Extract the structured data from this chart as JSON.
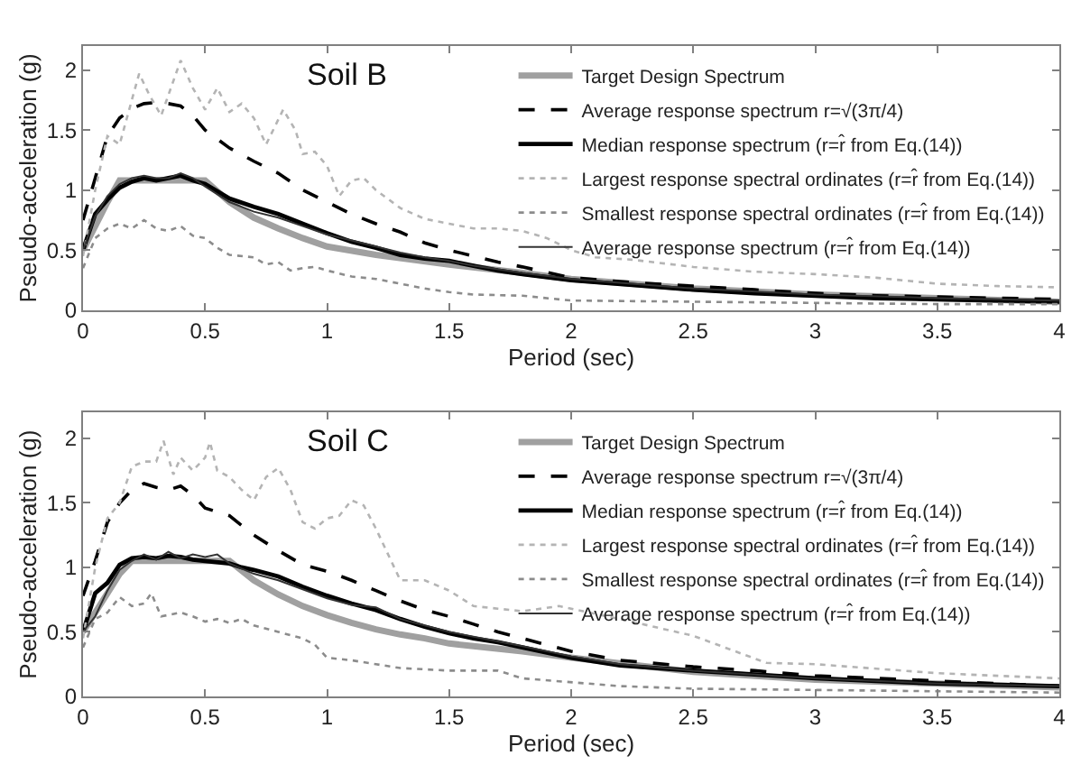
{
  "chart_data": [
    {
      "type": "line",
      "xlabel": "Period (sec)",
      "ylabel": "Pseudo-acceleration (g)",
      "annotations": [
        "Soil B"
      ],
      "xlim": [
        0,
        4
      ],
      "xticks": [
        0,
        0.5,
        1,
        1.5,
        2,
        2.5,
        3,
        3.5,
        4
      ],
      "ylim": [
        0,
        2.2
      ],
      "yticks": [
        0,
        0.5,
        1,
        1.5,
        2
      ],
      "grid": false,
      "legend": "top right",
      "marker": "none",
      "series": [
        {
          "name": "Target Design Spectrum",
          "color": "#a0a0a0",
          "line_style": "solid",
          "x": [
            0,
            0.05,
            0.1,
            0.15,
            0.2,
            0.3,
            0.4,
            0.5,
            0.6,
            0.7,
            0.8,
            0.9,
            1.0,
            1.2,
            1.5,
            1.8,
            2.0,
            2.5,
            3.0,
            3.5,
            4.0
          ],
          "values": [
            0.5,
            0.7,
            0.9,
            1.08,
            1.08,
            1.08,
            1.08,
            1.08,
            0.9,
            0.77,
            0.68,
            0.6,
            0.53,
            0.46,
            0.38,
            0.31,
            0.26,
            0.18,
            0.13,
            0.1,
            0.07
          ]
        },
        {
          "name": "Average response spectrum r=√(3π/4)",
          "color": "#000000",
          "line_style": "dashed",
          "x": [
            0,
            0.05,
            0.1,
            0.15,
            0.2,
            0.25,
            0.3,
            0.35,
            0.4,
            0.45,
            0.5,
            0.6,
            0.7,
            0.8,
            0.9,
            1.0,
            1.1,
            1.2,
            1.3,
            1.4,
            1.5,
            1.6,
            1.7,
            1.8,
            2.0,
            2.25,
            2.5,
            2.75,
            3.0,
            3.25,
            3.5,
            3.75,
            4.0
          ],
          "values": [
            0.75,
            1.1,
            1.45,
            1.6,
            1.68,
            1.72,
            1.73,
            1.72,
            1.7,
            1.62,
            1.5,
            1.35,
            1.24,
            1.14,
            1.0,
            0.9,
            0.8,
            0.72,
            0.65,
            0.56,
            0.5,
            0.45,
            0.4,
            0.36,
            0.27,
            0.23,
            0.2,
            0.17,
            0.14,
            0.12,
            0.11,
            0.1,
            0.09
          ]
        },
        {
          "name": "Median response spectrum (r=r̂ from Eq.(14))",
          "color": "#000000",
          "line_style": "solid",
          "x": [
            0,
            0.05,
            0.1,
            0.15,
            0.2,
            0.25,
            0.3,
            0.35,
            0.4,
            0.45,
            0.5,
            0.6,
            0.7,
            0.8,
            0.9,
            1.0,
            1.1,
            1.2,
            1.3,
            1.4,
            1.5,
            1.6,
            1.7,
            1.8,
            2.0,
            2.25,
            2.5,
            2.75,
            3.0,
            3.25,
            3.5,
            3.75,
            4.0
          ],
          "values": [
            0.5,
            0.8,
            0.92,
            1.02,
            1.07,
            1.1,
            1.08,
            1.1,
            1.12,
            1.08,
            1.05,
            0.93,
            0.86,
            0.8,
            0.72,
            0.64,
            0.57,
            0.52,
            0.46,
            0.43,
            0.41,
            0.37,
            0.33,
            0.3,
            0.25,
            0.21,
            0.17,
            0.14,
            0.12,
            0.1,
            0.09,
            0.08,
            0.07
          ]
        },
        {
          "name": "Largest response spectral ordinates (r=r̂ from Eq.(14))",
          "color": "#b4b4b4",
          "line_style": "dotted",
          "x": [
            0,
            0.05,
            0.1,
            0.15,
            0.2,
            0.23,
            0.27,
            0.32,
            0.36,
            0.4,
            0.45,
            0.5,
            0.55,
            0.6,
            0.65,
            0.7,
            0.75,
            0.82,
            0.87,
            0.9,
            0.95,
            1.0,
            1.05,
            1.1,
            1.15,
            1.2,
            1.3,
            1.4,
            1.5,
            1.6,
            1.7,
            1.8,
            1.9,
            2.0,
            2.1,
            2.25,
            2.5,
            2.75,
            3.0,
            3.25,
            3.5,
            3.75,
            4.0
          ],
          "values": [
            0.45,
            1.0,
            1.45,
            1.38,
            1.75,
            1.97,
            1.8,
            1.62,
            1.85,
            2.08,
            1.85,
            1.67,
            1.85,
            1.65,
            1.72,
            1.6,
            1.38,
            1.67,
            1.5,
            1.3,
            1.32,
            1.2,
            0.95,
            1.08,
            1.1,
            1.0,
            0.85,
            0.76,
            0.72,
            0.68,
            0.68,
            0.66,
            0.6,
            0.5,
            0.44,
            0.42,
            0.36,
            0.32,
            0.3,
            0.27,
            0.22,
            0.2,
            0.19
          ]
        },
        {
          "name": "Smallest response spectral ordinates (r=r̂ from Eq.(14))",
          "color": "#8c8c8c",
          "line_style": "dotted",
          "x": [
            0,
            0.05,
            0.1,
            0.15,
            0.2,
            0.25,
            0.3,
            0.35,
            0.4,
            0.45,
            0.5,
            0.55,
            0.6,
            0.7,
            0.75,
            0.8,
            0.85,
            0.9,
            0.95,
            1.0,
            1.1,
            1.2,
            1.3,
            1.4,
            1.5,
            1.6,
            1.8,
            2.0,
            2.5,
            3.0,
            3.5,
            4.0
          ],
          "values": [
            0.35,
            0.6,
            0.68,
            0.72,
            0.68,
            0.75,
            0.68,
            0.66,
            0.7,
            0.62,
            0.6,
            0.52,
            0.46,
            0.44,
            0.38,
            0.4,
            0.33,
            0.35,
            0.36,
            0.33,
            0.28,
            0.26,
            0.22,
            0.18,
            0.15,
            0.13,
            0.12,
            0.08,
            0.07,
            0.06,
            0.05,
            0.05
          ]
        },
        {
          "name": "Average response spectrum (r=r̂ from Eq.(14))",
          "color": "#333333",
          "line_style": "solid",
          "x": [
            0,
            0.05,
            0.1,
            0.15,
            0.2,
            0.25,
            0.3,
            0.35,
            0.4,
            0.45,
            0.5,
            0.6,
            0.7,
            0.8,
            0.9,
            1.0,
            1.1,
            1.2,
            1.3,
            1.4,
            1.5,
            1.6,
            1.7,
            1.8,
            2.0,
            2.5,
            3.0,
            3.5,
            4.0
          ],
          "values": [
            0.5,
            0.78,
            0.95,
            1.05,
            1.1,
            1.12,
            1.1,
            1.1,
            1.14,
            1.1,
            1.03,
            0.9,
            0.82,
            0.77,
            0.7,
            0.63,
            0.58,
            0.53,
            0.48,
            0.44,
            0.41,
            0.37,
            0.34,
            0.31,
            0.26,
            0.18,
            0.13,
            0.1,
            0.08
          ]
        }
      ]
    },
    {
      "type": "line",
      "xlabel": "Period (sec)",
      "ylabel": "Pseudo-acceleration (g)",
      "annotations": [
        "Soil C"
      ],
      "xlim": [
        0,
        4
      ],
      "xticks": [
        0,
        0.5,
        1,
        1.5,
        2,
        2.5,
        3,
        3.5,
        4
      ],
      "ylim": [
        0,
        2.2
      ],
      "yticks": [
        0,
        0.5,
        1,
        1.5,
        2
      ],
      "grid": false,
      "legend": "top right",
      "marker": "none",
      "series": [
        {
          "name": "Target Design Spectrum",
          "color": "#a0a0a0",
          "line_style": "solid",
          "x": [
            0,
            0.05,
            0.1,
            0.15,
            0.2,
            0.3,
            0.4,
            0.5,
            0.6,
            0.7,
            0.8,
            0.9,
            1.0,
            1.1,
            1.2,
            1.3,
            1.4,
            1.5,
            1.6,
            1.8,
            2.0,
            2.5,
            3.0,
            3.5,
            4.0
          ],
          "values": [
            0.5,
            0.65,
            0.8,
            0.95,
            1.05,
            1.05,
            1.05,
            1.05,
            1.05,
            0.9,
            0.79,
            0.7,
            0.63,
            0.57,
            0.52,
            0.48,
            0.45,
            0.41,
            0.39,
            0.35,
            0.3,
            0.19,
            0.13,
            0.1,
            0.07
          ]
        },
        {
          "name": "Average response spectrum r=√(3π/4)",
          "color": "#000000",
          "line_style": "dashed",
          "x": [
            0,
            0.05,
            0.1,
            0.15,
            0.2,
            0.25,
            0.3,
            0.35,
            0.4,
            0.45,
            0.5,
            0.6,
            0.7,
            0.8,
            0.9,
            1.0,
            1.1,
            1.2,
            1.3,
            1.4,
            1.5,
            1.6,
            1.7,
            1.8,
            2.0,
            2.2,
            2.5,
            2.75,
            3.0,
            3.25,
            3.5,
            3.75,
            4.0
          ],
          "values": [
            0.78,
            1.05,
            1.35,
            1.5,
            1.6,
            1.65,
            1.62,
            1.6,
            1.63,
            1.56,
            1.46,
            1.4,
            1.25,
            1.13,
            1.02,
            0.97,
            0.9,
            0.82,
            0.74,
            0.67,
            0.62,
            0.56,
            0.5,
            0.45,
            0.35,
            0.28,
            0.23,
            0.2,
            0.16,
            0.14,
            0.12,
            0.1,
            0.08
          ]
        },
        {
          "name": "Median response spectrum (r=r̂ from Eq.(14))",
          "color": "#000000",
          "line_style": "solid",
          "x": [
            0,
            0.05,
            0.1,
            0.15,
            0.2,
            0.25,
            0.3,
            0.35,
            0.4,
            0.45,
            0.5,
            0.6,
            0.65,
            0.7,
            0.8,
            0.9,
            1.0,
            1.1,
            1.2,
            1.3,
            1.4,
            1.5,
            1.6,
            1.7,
            1.8,
            2.0,
            2.2,
            2.5,
            2.75,
            3.0,
            3.25,
            3.5,
            3.75,
            4.0
          ],
          "values": [
            0.5,
            0.8,
            0.88,
            1.02,
            1.07,
            1.08,
            1.07,
            1.09,
            1.08,
            1.06,
            1.05,
            1.03,
            1.0,
            0.98,
            0.93,
            0.85,
            0.78,
            0.72,
            0.67,
            0.6,
            0.54,
            0.49,
            0.45,
            0.42,
            0.38,
            0.3,
            0.24,
            0.2,
            0.17,
            0.14,
            0.12,
            0.1,
            0.09,
            0.08
          ]
        },
        {
          "name": "Largest response spectral ordinates (r=r̂ from Eq.(14))",
          "color": "#b4b4b4",
          "line_style": "dotted",
          "x": [
            0,
            0.05,
            0.1,
            0.15,
            0.2,
            0.25,
            0.3,
            0.33,
            0.37,
            0.4,
            0.45,
            0.5,
            0.52,
            0.55,
            0.6,
            0.65,
            0.7,
            0.75,
            0.8,
            0.85,
            0.9,
            0.95,
            1.0,
            1.05,
            1.1,
            1.15,
            1.2,
            1.3,
            1.4,
            1.5,
            1.6,
            1.7,
            1.8,
            1.95,
            2.2,
            2.5,
            2.8,
            3.0,
            3.5,
            4.0
          ],
          "values": [
            0.45,
            1.0,
            1.38,
            1.5,
            1.78,
            1.82,
            1.82,
            1.98,
            1.72,
            1.85,
            1.75,
            1.85,
            1.97,
            1.75,
            1.7,
            1.6,
            1.52,
            1.7,
            1.77,
            1.6,
            1.35,
            1.3,
            1.38,
            1.4,
            1.52,
            1.48,
            1.3,
            0.9,
            0.9,
            0.82,
            0.7,
            0.68,
            0.66,
            0.7,
            0.6,
            0.47,
            0.26,
            0.25,
            0.18,
            0.14
          ]
        },
        {
          "name": "Smallest response spectral ordinates (r=r̂ from Eq.(14))",
          "color": "#8c8c8c",
          "line_style": "dotted",
          "x": [
            0,
            0.05,
            0.1,
            0.15,
            0.2,
            0.25,
            0.28,
            0.32,
            0.4,
            0.45,
            0.5,
            0.55,
            0.6,
            0.65,
            0.7,
            0.8,
            0.9,
            0.95,
            1.0,
            1.1,
            1.2,
            1.3,
            1.5,
            1.7,
            1.8,
            2.2,
            2.5,
            3.0,
            4.0
          ],
          "values": [
            0.38,
            0.6,
            0.65,
            0.77,
            0.7,
            0.72,
            0.8,
            0.62,
            0.65,
            0.62,
            0.58,
            0.6,
            0.57,
            0.6,
            0.55,
            0.5,
            0.45,
            0.4,
            0.3,
            0.28,
            0.25,
            0.22,
            0.2,
            0.2,
            0.14,
            0.08,
            0.06,
            0.05,
            0.03
          ]
        },
        {
          "name": "Average response spectrum (r=r̂ from Eq.(14))",
          "color": "#333333",
          "line_style": "solid",
          "x": [
            0,
            0.05,
            0.1,
            0.15,
            0.2,
            0.25,
            0.3,
            0.35,
            0.4,
            0.45,
            0.5,
            0.55,
            0.6,
            0.7,
            0.8,
            0.9,
            1.0,
            1.1,
            1.2,
            1.3,
            1.4,
            1.5,
            1.8,
            2.0,
            2.2,
            2.5,
            3.0,
            3.5,
            4.0
          ],
          "values": [
            0.5,
            0.62,
            0.82,
            0.98,
            1.05,
            1.1,
            1.06,
            1.12,
            1.07,
            1.1,
            1.08,
            1.1,
            1.03,
            0.95,
            0.9,
            0.83,
            0.76,
            0.71,
            0.69,
            0.6,
            0.55,
            0.5,
            0.39,
            0.31,
            0.25,
            0.2,
            0.14,
            0.1,
            0.08
          ]
        }
      ]
    }
  ]
}
